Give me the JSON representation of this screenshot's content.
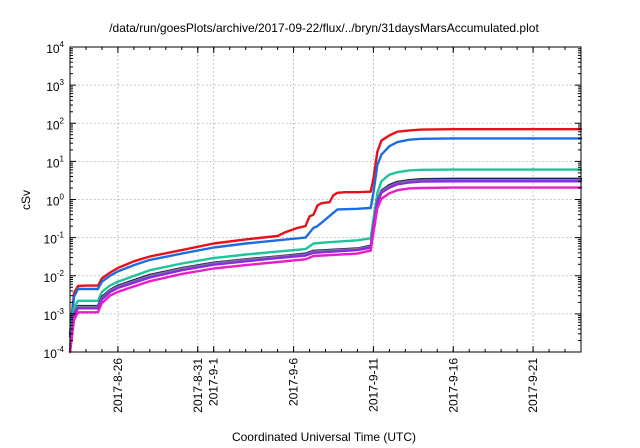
{
  "chart_data": {
    "type": "line",
    "title": "/data/run/goesPlots/archive/2017-09-22/flux/../bryn/31daysMarsAccumulated.plot",
    "xlabel": "Coordinated Universal Time (UTC)",
    "ylabel": "cSv",
    "yscale": "log",
    "ylim": [
      0.0001,
      10000
    ],
    "xlim": [
      "2017-08-23",
      "2017-09-24"
    ],
    "grid": true,
    "y_ticks": [
      {
        "base": "10",
        "exp": "-4",
        "value": 0.0001
      },
      {
        "base": "10",
        "exp": "-3",
        "value": 0.001
      },
      {
        "base": "10",
        "exp": "-2",
        "value": 0.01
      },
      {
        "base": "10",
        "exp": "-1",
        "value": 0.1
      },
      {
        "base": "10",
        "exp": "0",
        "value": 1
      },
      {
        "base": "10",
        "exp": "1",
        "value": 10
      },
      {
        "base": "10",
        "exp": "2",
        "value": 100
      },
      {
        "base": "10",
        "exp": "3",
        "value": 1000
      },
      {
        "base": "10",
        "exp": "4",
        "value": 10000
      }
    ],
    "x_ticks": [
      {
        "label": "2017-8-26",
        "value": "2017-08-26"
      },
      {
        "label": "2017-8-31",
        "value": "2017-08-31"
      },
      {
        "label": "2017-9-1",
        "value": "2017-09-01"
      },
      {
        "label": "2017-9-6",
        "value": "2017-09-06"
      },
      {
        "label": "2017-9-11",
        "value": "2017-09-11"
      },
      {
        "label": "2017-9-16",
        "value": "2017-09-16"
      },
      {
        "label": "2017-9-21",
        "value": "2017-09-21"
      }
    ],
    "series": [
      {
        "color": "#e8101a",
        "x": [
          "2017-08-23T00:00",
          "2017-08-23T06:00",
          "2017-08-23T12:00",
          "2017-08-24T00:00",
          "2017-08-24T18:00",
          "2017-08-25T00:00",
          "2017-08-25T12:00",
          "2017-08-26T00:00",
          "2017-08-27T00:00",
          "2017-08-28T00:00",
          "2017-08-30T00:00",
          "2017-09-01T00:00",
          "2017-09-03T00:00",
          "2017-09-05T00:00",
          "2017-09-05T12:00",
          "2017-09-06T06:00",
          "2017-09-06T18:00",
          "2017-09-07T00:00",
          "2017-09-07T06:00",
          "2017-09-07T12:00",
          "2017-09-07T18:00",
          "2017-09-08T06:00",
          "2017-09-08T12:00",
          "2017-09-08T18:00",
          "2017-09-09T06:00",
          "2017-09-10T00:00",
          "2017-09-10T18:00",
          "2017-09-10T20:00",
          "2017-09-11T00:00",
          "2017-09-11T06:00",
          "2017-09-11T12:00",
          "2017-09-12T00:00",
          "2017-09-12T12:00",
          "2017-09-13T06:00",
          "2017-09-14T00:00",
          "2017-09-16T00:00",
          "2017-09-20T00:00",
          "2017-09-24T00:00"
        ],
        "y": [
          0.0003,
          0.0035,
          0.0054,
          0.0055,
          0.0055,
          0.0085,
          0.012,
          0.016,
          0.024,
          0.032,
          0.047,
          0.07,
          0.09,
          0.11,
          0.14,
          0.18,
          0.2,
          0.36,
          0.4,
          0.7,
          0.8,
          0.85,
          1.3,
          1.5,
          1.55,
          1.55,
          1.6,
          1.6,
          3.5,
          18,
          35,
          48,
          60,
          65,
          68,
          70,
          70,
          70
        ]
      },
      {
        "color": "#1c6ee0",
        "x": [
          "2017-08-23T00:00",
          "2017-08-23T06:00",
          "2017-08-23T12:00",
          "2017-08-24T00:00",
          "2017-08-24T18:00",
          "2017-08-25T00:00",
          "2017-08-25T12:00",
          "2017-08-26T00:00",
          "2017-08-27T00:00",
          "2017-08-28T00:00",
          "2017-08-30T00:00",
          "2017-09-01T00:00",
          "2017-09-03T00:00",
          "2017-09-05T00:00",
          "2017-09-06T18:00",
          "2017-09-07T06:00",
          "2017-09-07T12:00",
          "2017-09-08T00:00",
          "2017-09-08T12:00",
          "2017-09-08T18:00",
          "2017-09-10T00:00",
          "2017-09-10T18:00",
          "2017-09-10T20:00",
          "2017-09-11T00:00",
          "2017-09-11T06:00",
          "2017-09-11T12:00",
          "2017-09-12T00:00",
          "2017-09-12T12:00",
          "2017-09-13T06:00",
          "2017-09-14T00:00",
          "2017-09-16T00:00",
          "2017-09-20T00:00",
          "2017-09-24T00:00"
        ],
        "y": [
          0.00025,
          0.0028,
          0.0045,
          0.0045,
          0.0045,
          0.007,
          0.01,
          0.013,
          0.019,
          0.026,
          0.038,
          0.055,
          0.07,
          0.085,
          0.1,
          0.18,
          0.2,
          0.3,
          0.45,
          0.55,
          0.57,
          0.6,
          0.6,
          1.5,
          8,
          15,
          25,
          32,
          37,
          39,
          40,
          40,
          40
        ]
      },
      {
        "color": "#1fc49a",
        "x": [
          "2017-08-23T00:00",
          "2017-08-23T06:00",
          "2017-08-23T12:00",
          "2017-08-24T00:00",
          "2017-08-24T18:00",
          "2017-08-25T00:00",
          "2017-08-25T12:00",
          "2017-08-26T00:00",
          "2017-08-28T00:00",
          "2017-08-30T00:00",
          "2017-09-01T00:00",
          "2017-09-03T00:00",
          "2017-09-05T00:00",
          "2017-09-06T18:00",
          "2017-09-07T06:00",
          "2017-09-08T00:00",
          "2017-09-10T00:00",
          "2017-09-10T18:00",
          "2017-09-10T20:00",
          "2017-09-11T00:00",
          "2017-09-11T06:00",
          "2017-09-11T12:00",
          "2017-09-12T00:00",
          "2017-09-12T12:00",
          "2017-09-13T06:00",
          "2017-09-14T00:00",
          "2017-09-16T00:00",
          "2017-09-20T00:00",
          "2017-09-24T00:00"
        ],
        "y": [
          0.00015,
          0.0014,
          0.0022,
          0.0022,
          0.0022,
          0.0038,
          0.0055,
          0.007,
          0.014,
          0.021,
          0.029,
          0.036,
          0.043,
          0.05,
          0.07,
          0.075,
          0.085,
          0.095,
          0.095,
          0.3,
          1.5,
          3,
          4.5,
          5.2,
          5.8,
          6,
          6.1,
          6.1,
          6.1
        ]
      },
      {
        "color": "#222266",
        "x": [
          "2017-08-23T00:00",
          "2017-08-23T06:00",
          "2017-08-23T12:00",
          "2017-08-24T00:00",
          "2017-08-24T18:00",
          "2017-08-25T00:00",
          "2017-08-25T12:00",
          "2017-08-26T00:00",
          "2017-08-28T00:00",
          "2017-08-30T00:00",
          "2017-09-01T00:00",
          "2017-09-03T00:00",
          "2017-09-05T00:00",
          "2017-09-06T18:00",
          "2017-09-07T06:00",
          "2017-09-10T00:00",
          "2017-09-10T18:00",
          "2017-09-10T20:00",
          "2017-09-11T00:00",
          "2017-09-11T06:00",
          "2017-09-11T12:00",
          "2017-09-12T00:00",
          "2017-09-12T12:00",
          "2017-09-13T06:00",
          "2017-09-14T00:00",
          "2017-09-16T00:00",
          "2017-09-20T00:00",
          "2017-09-24T00:00"
        ],
        "y": [
          0.0001,
          0.001,
          0.0016,
          0.0016,
          0.0016,
          0.0028,
          0.0042,
          0.0055,
          0.0105,
          0.016,
          0.022,
          0.027,
          0.032,
          0.038,
          0.045,
          0.052,
          0.06,
          0.06,
          0.2,
          0.9,
          1.7,
          2.4,
          2.9,
          3.2,
          3.4,
          3.5,
          3.5,
          3.5
        ]
      },
      {
        "color": "#7a7a88",
        "x": [
          "2017-08-23T00:00",
          "2017-08-23T06:00",
          "2017-08-23T12:00",
          "2017-08-24T00:00",
          "2017-08-24T18:00",
          "2017-08-25T00:00",
          "2017-08-25T12:00",
          "2017-08-26T00:00",
          "2017-08-28T00:00",
          "2017-08-30T00:00",
          "2017-09-01T00:00",
          "2017-09-03T00:00",
          "2017-09-05T00:00",
          "2017-09-06T18:00",
          "2017-09-07T06:00",
          "2017-09-10T00:00",
          "2017-09-10T18:00",
          "2017-09-10T20:00",
          "2017-09-11T00:00",
          "2017-09-11T06:00",
          "2017-09-11T12:00",
          "2017-09-12T00:00",
          "2017-09-12T12:00",
          "2017-09-13T06:00",
          "2017-09-14T00:00",
          "2017-09-16T00:00",
          "2017-09-20T00:00",
          "2017-09-24T00:00"
        ],
        "y": [
          0.0001,
          0.00095,
          0.0015,
          0.0015,
          0.0015,
          0.0026,
          0.004,
          0.0052,
          0.0098,
          0.0152,
          0.021,
          0.026,
          0.031,
          0.036,
          0.043,
          0.05,
          0.057,
          0.057,
          0.19,
          0.85,
          1.6,
          2.2,
          2.7,
          3.0,
          3.15,
          3.2,
          3.2,
          3.2
        ]
      },
      {
        "color": "#8a2be2",
        "x": [
          "2017-08-23T00:00",
          "2017-08-23T06:00",
          "2017-08-23T12:00",
          "2017-08-24T00:00",
          "2017-08-24T18:00",
          "2017-08-25T00:00",
          "2017-08-25T12:00",
          "2017-08-26T00:00",
          "2017-08-28T00:00",
          "2017-08-30T00:00",
          "2017-09-01T00:00",
          "2017-09-03T00:00",
          "2017-09-05T00:00",
          "2017-09-06T18:00",
          "2017-09-07T06:00",
          "2017-09-10T00:00",
          "2017-09-10T18:00",
          "2017-09-10T20:00",
          "2017-09-11T00:00",
          "2017-09-11T06:00",
          "2017-09-11T12:00",
          "2017-09-12T00:00",
          "2017-09-12T12:00",
          "2017-09-13T06:00",
          "2017-09-14T00:00",
          "2017-09-16T00:00",
          "2017-09-20T00:00",
          "2017-09-24T00:00"
        ],
        "y": [
          0.0001,
          0.0009,
          0.0014,
          0.0014,
          0.0014,
          0.0024,
          0.0037,
          0.0048,
          0.009,
          0.014,
          0.0195,
          0.024,
          0.029,
          0.034,
          0.04,
          0.047,
          0.054,
          0.054,
          0.18,
          0.8,
          1.5,
          2.05,
          2.5,
          2.8,
          2.95,
          3.0,
          3.0,
          3.0
        ]
      },
      {
        "color": "#e81fc8",
        "x": [
          "2017-08-23T00:00",
          "2017-08-23T06:00",
          "2017-08-23T12:00",
          "2017-08-24T00:00",
          "2017-08-24T18:00",
          "2017-08-25T00:00",
          "2017-08-25T12:00",
          "2017-08-26T00:00",
          "2017-08-28T00:00",
          "2017-08-30T00:00",
          "2017-09-01T00:00",
          "2017-09-03T00:00",
          "2017-09-05T00:00",
          "2017-09-06T18:00",
          "2017-09-07T06:00",
          "2017-09-10T00:00",
          "2017-09-10T18:00",
          "2017-09-10T20:00",
          "2017-09-11T00:00",
          "2017-09-11T06:00",
          "2017-09-11T12:00",
          "2017-09-12T00:00",
          "2017-09-12T12:00",
          "2017-09-13T06:00",
          "2017-09-14T00:00",
          "2017-09-16T00:00",
          "2017-09-20T00:00",
          "2017-09-24T00:00"
        ],
        "y": [
          0.0001,
          0.0007,
          0.0011,
          0.0011,
          0.0011,
          0.0019,
          0.003,
          0.0038,
          0.0072,
          0.0112,
          0.0155,
          0.019,
          0.023,
          0.027,
          0.033,
          0.038,
          0.045,
          0.045,
          0.13,
          0.6,
          1.05,
          1.45,
          1.75,
          1.95,
          2.0,
          2.05,
          2.05,
          2.05
        ]
      }
    ]
  }
}
